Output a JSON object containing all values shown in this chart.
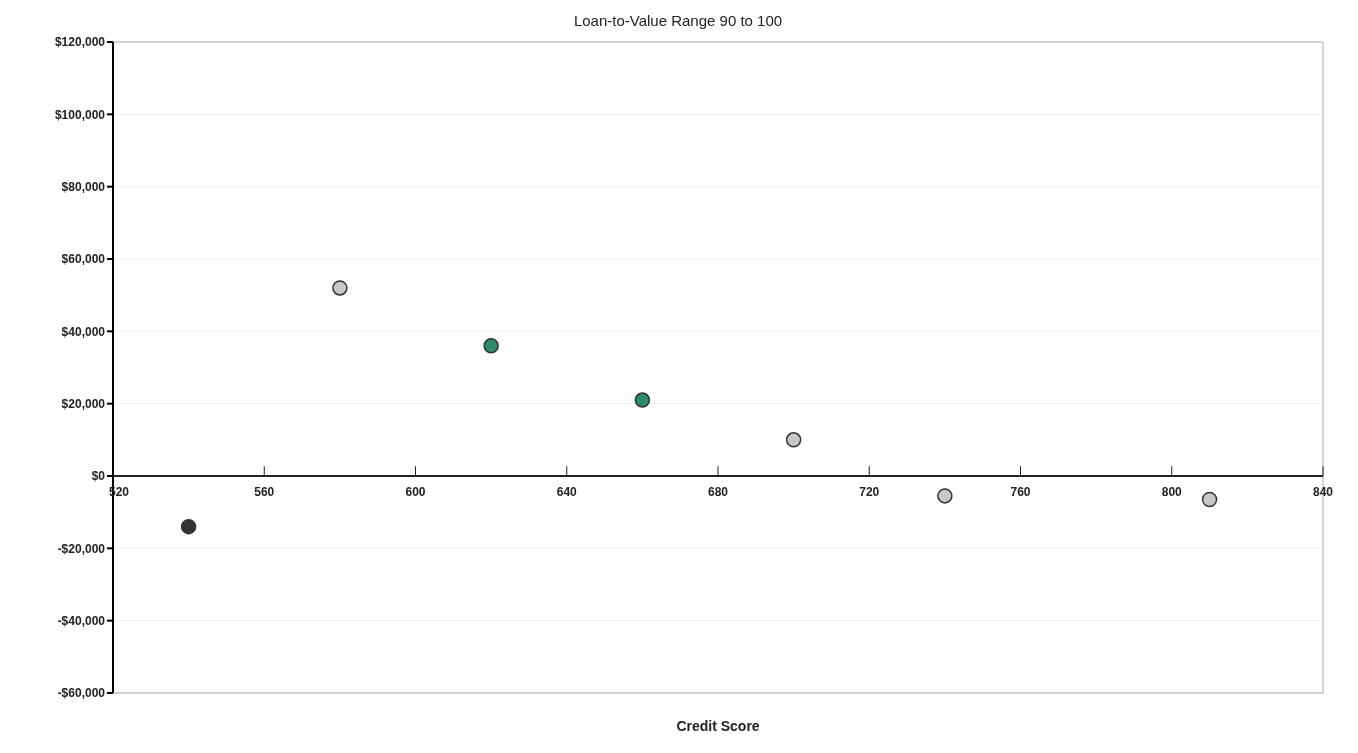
{
  "chart_data": {
    "type": "scatter",
    "title": "Loan-to-Value Range 90 to 100",
    "xlabel": "Credit Score",
    "x": [
      540,
      580,
      620,
      660,
      700,
      740,
      810
    ],
    "values": [
      -14000,
      52000,
      36000,
      21000,
      10000,
      -5500,
      -6500
    ],
    "colors": [
      "#333333",
      "#c8c8c8",
      "#2e8b6a",
      "#2e8b6a",
      "#c8c8c8",
      "#c8c8c8",
      "#c8c8c8"
    ],
    "xlim": [
      520,
      840
    ],
    "xticks": [
      520,
      560,
      600,
      640,
      680,
      720,
      760,
      800,
      840
    ],
    "ylim": [
      -60000,
      120000
    ],
    "yticks": [
      {
        "value": -60000,
        "label": "-$60,000"
      },
      {
        "value": -40000,
        "label": "-$40,000"
      },
      {
        "value": -20000,
        "label": "-$20,000"
      },
      {
        "value": 0,
        "label": "$0"
      },
      {
        "value": 20000,
        "label": "$20,000"
      },
      {
        "value": 40000,
        "label": "$40,000"
      },
      {
        "value": 60000,
        "label": "$60,000"
      },
      {
        "value": 80000,
        "label": "$80,000"
      },
      {
        "value": 100000,
        "label": "$100,000"
      },
      {
        "value": 120000,
        "label": "$120,000"
      }
    ],
    "grid": "y",
    "marker": "circle"
  }
}
